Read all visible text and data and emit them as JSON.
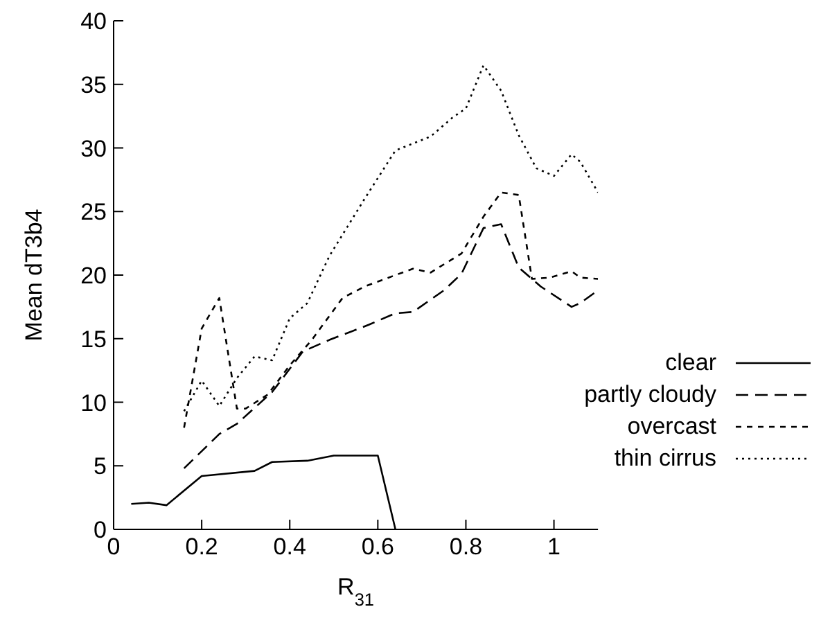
{
  "chart_data": {
    "type": "line",
    "xlabel": "R$_{31}$",
    "ylabel": "Mean dT3b4",
    "xlim": [
      0,
      1.1
    ],
    "xticks": [
      0,
      0.2,
      0.4,
      0.6,
      0.8,
      1
    ],
    "ylim": [
      0,
      40
    ],
    "yticks": [
      0,
      5,
      10,
      15,
      20,
      25,
      30,
      35,
      40
    ],
    "grid": false,
    "legend": "right",
    "marker": "none",
    "series": [
      {
        "name": "clear",
        "color": "#000000",
        "line_style": "solid",
        "x": [
          0.04,
          0.08,
          0.12,
          0.2,
          0.32,
          0.36,
          0.44,
          0.5,
          0.6,
          0.64
        ],
        "values": [
          2.0,
          2.1,
          1.9,
          4.2,
          4.6,
          5.3,
          5.4,
          5.8,
          5.8,
          0
        ]
      },
      {
        "name": "partly cloudy",
        "color": "#000000",
        "line_style": "dashed",
        "x": [
          0.16,
          0.24,
          0.28,
          0.36,
          0.43,
          0.49,
          0.58,
          0.64,
          0.68,
          0.75,
          0.79,
          0.84,
          0.88,
          0.92,
          0.97,
          1.04,
          1.06,
          1.1
        ],
        "values": [
          4.8,
          7.5,
          8.3,
          10.8,
          14.0,
          14.9,
          16.1,
          17.0,
          17.1,
          18.8,
          20.1,
          23.7,
          24.0,
          20.6,
          19.1,
          17.5,
          17.8,
          18.8
        ]
      },
      {
        "name": "overcast",
        "color": "#000000",
        "line_style": "dashed",
        "x": [
          0.16,
          0.2,
          0.24,
          0.28,
          0.3,
          0.35,
          0.4,
          0.45,
          0.52,
          0.57,
          0.64,
          0.68,
          0.72,
          0.79,
          0.84,
          0.88,
          0.92,
          0.95,
          0.99,
          1.04,
          1.06,
          1.1
        ],
        "values": [
          8.0,
          15.8,
          18.2,
          9.5,
          9.5,
          10.6,
          12.9,
          14.9,
          18.2,
          19.1,
          20.0,
          20.5,
          20.2,
          21.7,
          24.6,
          26.5,
          26.3,
          19.7,
          19.8,
          20.3,
          19.8,
          19.7
        ]
      },
      {
        "name": "thin cirrus",
        "color": "#000000",
        "line_style": "dotted",
        "x": [
          0.16,
          0.2,
          0.24,
          0.28,
          0.32,
          0.36,
          0.4,
          0.44,
          0.49,
          0.57,
          0.64,
          0.72,
          0.77,
          0.8,
          0.84,
          0.88,
          0.92,
          0.96,
          1.0,
          1.04,
          1.06,
          1.1
        ],
        "values": [
          9.3,
          11.7,
          9.7,
          11.9,
          13.6,
          13.3,
          16.6,
          17.8,
          21.5,
          26.0,
          29.8,
          30.9,
          32.4,
          33.1,
          36.5,
          34.5,
          31.0,
          28.4,
          27.8,
          29.5,
          28.9,
          26.5
        ]
      }
    ]
  }
}
